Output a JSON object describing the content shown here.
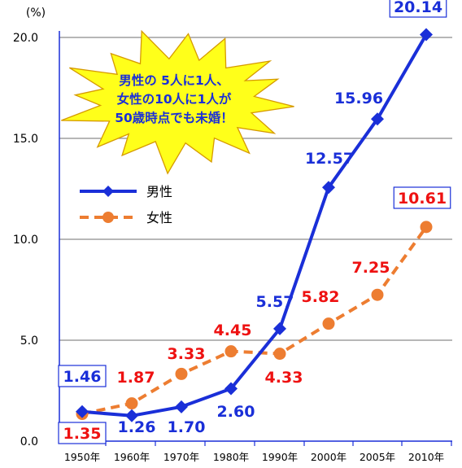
{
  "chart_data": {
    "type": "line",
    "ylabel": "(%)",
    "ylim": [
      0,
      20
    ],
    "yticks": [
      "0.0",
      "5.0",
      "10.0",
      "15.0",
      "20.0"
    ],
    "categories": [
      "1950年",
      "1960年",
      "1970年",
      "1980年",
      "1990年",
      "2000年",
      "2005年",
      "2010年"
    ],
    "series": [
      {
        "name": "男性",
        "color": "#1a2fd8",
        "marker": "diamond",
        "style": "solid",
        "values": [
          1.46,
          1.26,
          1.7,
          2.6,
          5.57,
          12.57,
          15.96,
          20.14
        ],
        "labels": [
          "1.46",
          "1.26",
          "1.70",
          "2.60",
          "5.57",
          "12.57",
          "15.96",
          "20.14"
        ]
      },
      {
        "name": "女性",
        "color": "#ed7d31",
        "marker": "circle",
        "style": "dashed",
        "values": [
          1.35,
          1.87,
          3.33,
          4.45,
          4.33,
          5.82,
          7.25,
          10.61
        ],
        "labels": [
          "1.35",
          "1.87",
          "3.33",
          "4.45",
          "4.33",
          "5.82",
          "7.25",
          "10.61"
        ]
      }
    ],
    "grid": true,
    "legend": "middle-left",
    "annotation": {
      "lines": [
        "男性の 5人に1人、",
        "女性の10人に1人が",
        "50歳時点でも未婚！"
      ],
      "fill": "#ffff1a"
    },
    "label_colors": {
      "male": "#1a2fd8",
      "female": "#ee1111"
    }
  }
}
